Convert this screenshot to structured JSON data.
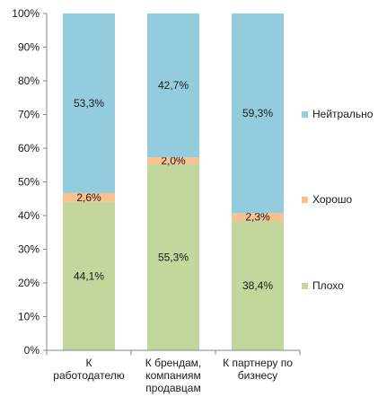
{
  "chart_data": {
    "type": "bar",
    "stacked": true,
    "percent": true,
    "categories": [
      [
        "К",
        "работодателю"
      ],
      [
        "К брендам,",
        "компаниям",
        "продавцам"
      ],
      [
        "К партнеру по",
        "бизнесу"
      ]
    ],
    "series": [
      {
        "name": "Плохо",
        "values": [
          44.1,
          55.3,
          38.4
        ],
        "labels": [
          "44,1%",
          "55,3%",
          "38,4%"
        ],
        "color": "#c3d69b"
      },
      {
        "name": "Хорошо",
        "values": [
          2.6,
          2.0,
          2.3
        ],
        "labels": [
          "2,6%",
          "2,0%",
          "2,3%"
        ],
        "color": "#fac090"
      },
      {
        "name": "Нейтрально",
        "values": [
          53.3,
          42.7,
          59.3
        ],
        "labels": [
          "53,3%",
          "42,7%",
          "59,3%"
        ],
        "color": "#93cddd"
      }
    ],
    "ylim": [
      0,
      100
    ],
    "y_ticks": [
      "0%",
      "10%",
      "20%",
      "30%",
      "40%",
      "50%",
      "60%",
      "70%",
      "80%",
      "90%",
      "100%"
    ],
    "legend_position": "right",
    "grid": false
  }
}
